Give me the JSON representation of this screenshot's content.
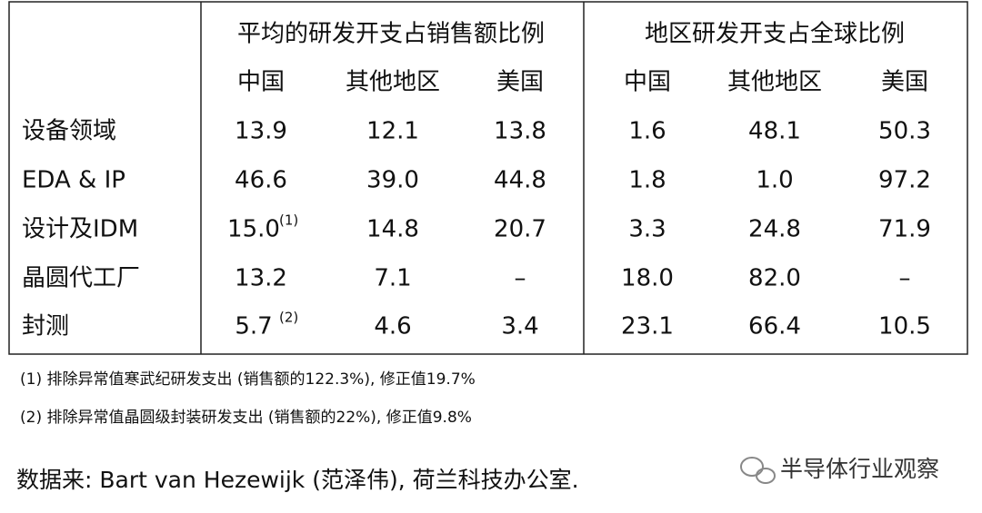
{
  "table": {
    "group_headers": [
      "平均的研发开支占销售额比例",
      "地区研发开支占全球比例"
    ],
    "sub_headers": [
      "中国",
      "其他地区",
      "美国",
      "中国",
      "其他地区",
      "美国"
    ],
    "rows": [
      {
        "label": "设备领域",
        "cells": [
          "13.9",
          "12.1",
          "13.8",
          "1.6",
          "48.1",
          "50.3"
        ]
      },
      {
        "label": "EDA & IP",
        "cells": [
          "46.6",
          "39.0",
          "44.8",
          "1.8",
          "1.0",
          "97.2"
        ]
      },
      {
        "label": "设计及IDM",
        "cells": [
          {
            "text": "15.0",
            "mark": "(1)"
          },
          "14.8",
          "20.7",
          "3.3",
          "24.8",
          "71.9"
        ]
      },
      {
        "label": "晶圆代工厂",
        "cells": [
          "13.2",
          "7.1",
          "–",
          "18.0",
          "82.0",
          "–"
        ]
      },
      {
        "label": "封测",
        "cells": [
          {
            "text": "5.7",
            "mark": "(2)"
          },
          "4.6",
          "3.4",
          "23.1",
          "66.4",
          "10.5"
        ]
      }
    ]
  },
  "footnotes": [
    "(1) 排除异常值寒武纪研发支出 (销售额的122.3%), 修正值19.7%",
    "(2) 排除异常值晶圆级封装研发支出 (销售额的22%), 修正值9.8%"
  ],
  "source": "数据来: Bart van Hezewijk (范泽伟), 荷兰科技办公室.",
  "watermark": "半导体行业观察"
}
